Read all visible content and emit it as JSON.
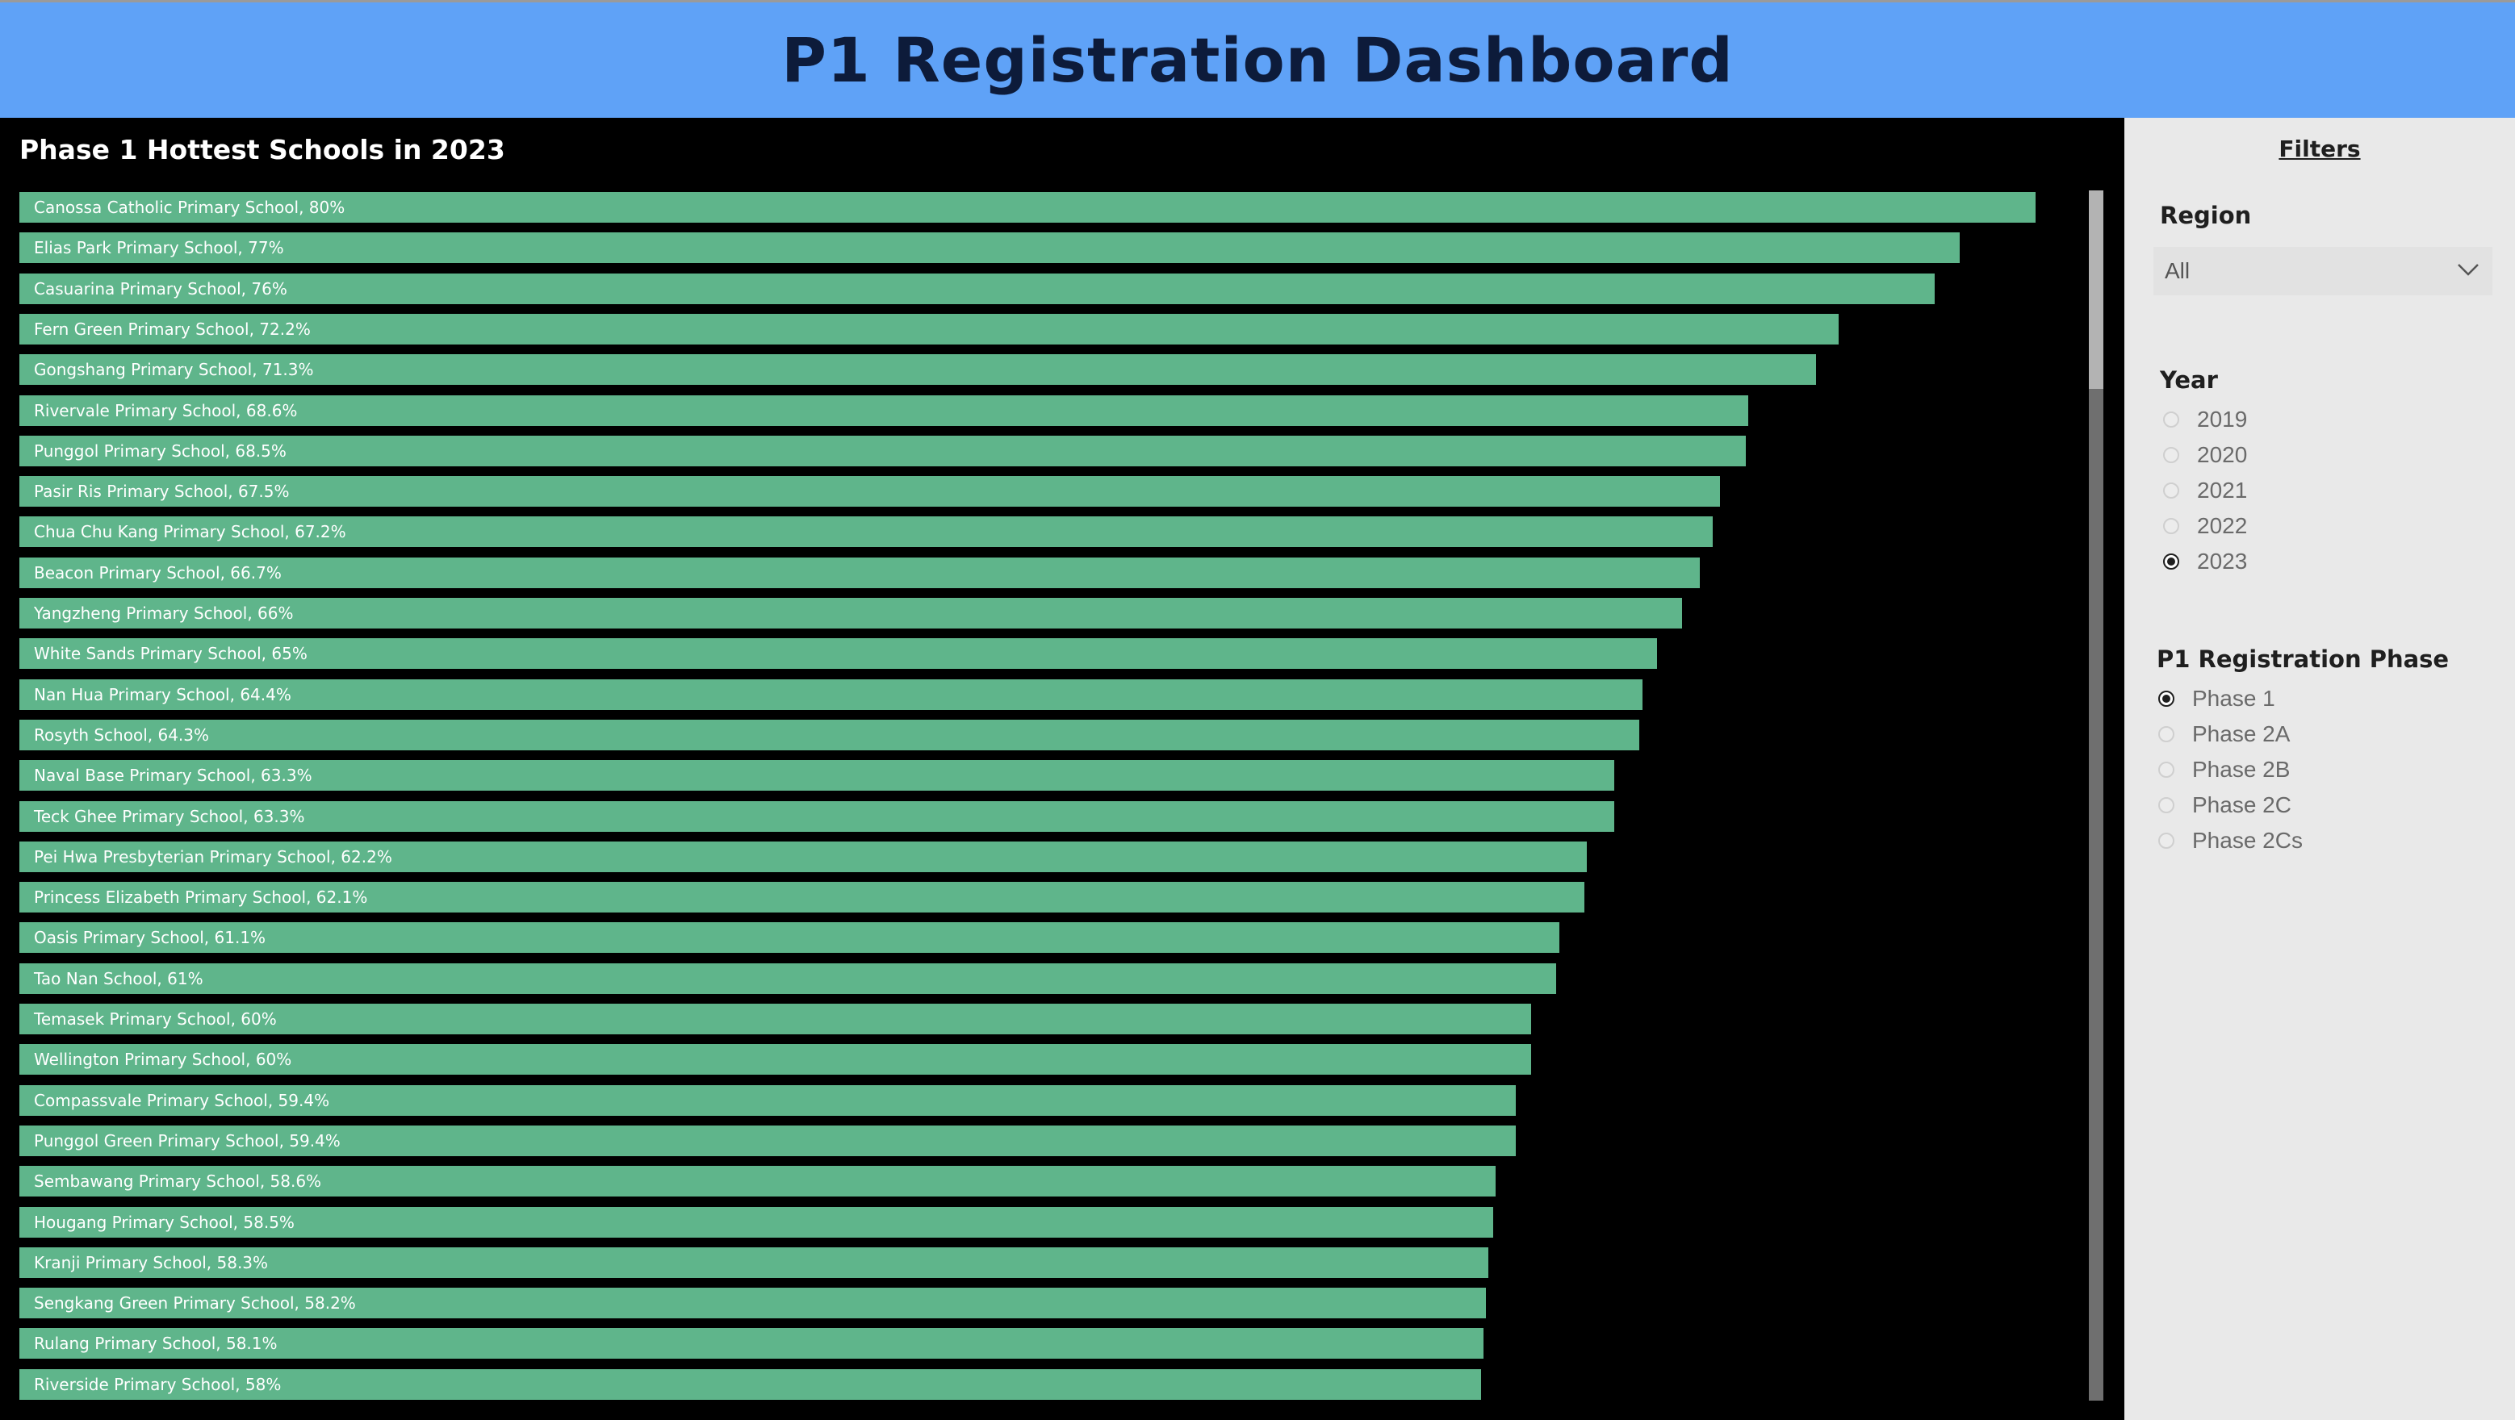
{
  "header": {
    "title": "P1 Registration Dashboard"
  },
  "chart_data": {
    "type": "bar",
    "orientation": "horizontal",
    "title": "Phase 1 Hottest Schools in 2023",
    "xlim": [
      0,
      82
    ],
    "bar_color": "#5fb58b",
    "categories": [
      "Canossa Catholic Primary School",
      "Elias Park Primary School",
      "Casuarina Primary School",
      "Fern Green Primary School",
      "Gongshang Primary School",
      "Rivervale Primary School",
      "Punggol Primary School",
      "Pasir Ris Primary School",
      "Chua Chu Kang Primary School",
      "Beacon Primary School",
      "Yangzheng Primary School",
      "White Sands Primary School",
      "Nan Hua Primary School",
      "Rosyth School",
      "Naval Base Primary School",
      "Teck Ghee Primary School",
      "Pei Hwa Presbyterian Primary School",
      "Princess Elizabeth Primary School",
      "Oasis Primary School",
      "Tao Nan School",
      "Temasek Primary School",
      "Wellington Primary School",
      "Compassvale Primary School",
      "Punggol Green Primary School",
      "Sembawang Primary School",
      "Hougang Primary School",
      "Kranji Primary School",
      "Sengkang Green Primary School",
      "Rulang Primary School",
      "Riverside Primary School"
    ],
    "values": [
      80,
      77,
      76,
      72.2,
      71.3,
      68.6,
      68.5,
      67.5,
      67.2,
      66.7,
      66,
      65,
      64.4,
      64.3,
      63.3,
      63.3,
      62.2,
      62.1,
      61.1,
      61,
      60,
      60,
      59.4,
      59.4,
      58.6,
      58.5,
      58.3,
      58.2,
      58.1,
      58
    ],
    "labels": [
      "Canossa Catholic Primary School, 80%",
      "Elias Park Primary School, 77%",
      "Casuarina Primary School, 76%",
      "Fern Green Primary School, 72.2%",
      "Gongshang Primary School, 71.3%",
      "Rivervale Primary School, 68.6%",
      "Punggol Primary School, 68.5%",
      "Pasir Ris Primary School, 67.5%",
      "Chua Chu Kang Primary School, 67.2%",
      "Beacon Primary School, 66.7%",
      "Yangzheng Primary School, 66%",
      "White Sands Primary School, 65%",
      "Nan Hua Primary School, 64.4%",
      "Rosyth School, 64.3%",
      "Naval Base Primary School, 63.3%",
      "Teck Ghee Primary School, 63.3%",
      "Pei Hwa Presbyterian Primary School, 62.2%",
      "Princess Elizabeth Primary School, 62.1%",
      "Oasis Primary School, 61.1%",
      "Tao Nan School, 61%",
      "Temasek Primary School, 60%",
      "Wellington Primary School, 60%",
      "Compassvale Primary School, 59.4%",
      "Punggol Green Primary School, 59.4%",
      "Sembawang Primary School, 58.6%",
      "Hougang Primary School, 58.5%",
      "Kranji Primary School, 58.3%",
      "Sengkang Green Primary School, 58.2%",
      "Rulang Primary School, 58.1%",
      "Riverside Primary School, 58%"
    ]
  },
  "filters": {
    "title": "Filters",
    "region": {
      "label": "Region",
      "selected": "All",
      "icon": "chevron-down-icon"
    },
    "year": {
      "label": "Year",
      "options": [
        "2019",
        "2020",
        "2021",
        "2022",
        "2023"
      ],
      "selected": "2023"
    },
    "phase": {
      "label": "P1 Registration Phase",
      "options": [
        "Phase 1",
        "Phase 2A",
        "Phase 2B",
        "Phase 2C",
        "Phase 2Cs"
      ],
      "selected": "Phase 1"
    }
  }
}
